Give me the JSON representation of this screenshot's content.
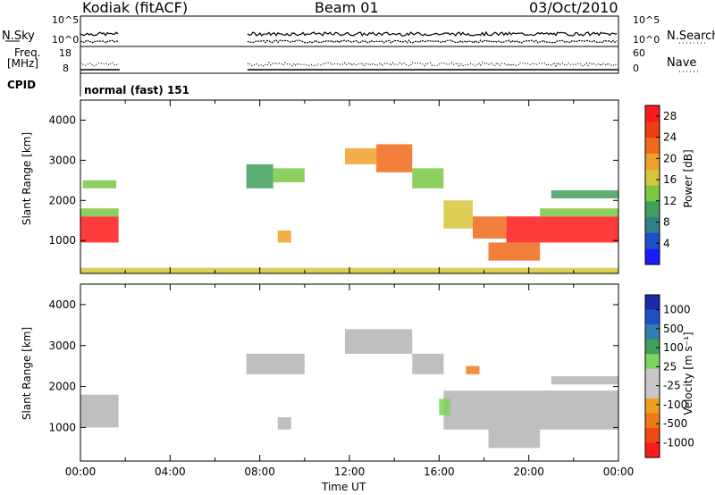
{
  "header": {
    "station": "Kodiak (fitACF)",
    "beam": "Beam 01",
    "date": "03/Oct/2010"
  },
  "top_panels": {
    "nsky_label": "N.Sky",
    "nsearch_label": "N.Search",
    "freq_label_1": "Freq.",
    "freq_label_2": "[MHz]",
    "nave_label": "Nave",
    "cpid_label": "CPID",
    "cpid_text": "normal (fast) 151",
    "noise_left_ticks": [
      "10^5",
      "10^0"
    ],
    "noise_right_ticks": [
      "10^5",
      "10^0"
    ],
    "freq_left_ticks": [
      "18",
      "8"
    ],
    "nave_right_ticks": [
      "60",
      "0"
    ]
  },
  "colors": {
    "power_scale": [
      "#1a1aff",
      "#1e50c8",
      "#2f7f8a",
      "#3fa05c",
      "#7ac843",
      "#d6c63a",
      "#f0a12a",
      "#f06a1a",
      "#f03c14",
      "#ff1a1a"
    ],
    "velocity_scale": [
      "#ff1a1a",
      "#f04a14",
      "#f07a1a",
      "#f0a020",
      "#c8c8c8",
      "#c8c8c8",
      "#7ed35c",
      "#3fa05c",
      "#2f7faf",
      "#1e50c8",
      "#1a2aaa"
    ],
    "ground_scatter": "#b4b4b4"
  },
  "chart_data": [
    {
      "type": "heatmap",
      "title": "",
      "xlabel": "Time UT",
      "ylabel": "Slant Range [km]",
      "xlim": [
        "00:00",
        "24:00"
      ],
      "ylim": [
        180,
        4500
      ],
      "x_ticks": [
        "00:00",
        "04:00",
        "08:00",
        "12:00",
        "16:00",
        "20:00",
        "00:00"
      ],
      "y_ticks": [
        1000,
        2000,
        3000,
        4000
      ],
      "colorbar": {
        "label": "Power [dB]",
        "ticks": [
          4,
          8,
          12,
          16,
          20,
          24,
          28
        ],
        "range": [
          0,
          30
        ]
      },
      "regions": [
        {
          "t0": 0.0,
          "t1": 1.7,
          "r0": 950,
          "r1": 1600,
          "value": 27
        },
        {
          "t0": 0.0,
          "t1": 1.7,
          "r0": 1600,
          "r1": 1800,
          "value": 14
        },
        {
          "t0": 0.1,
          "t1": 1.6,
          "r0": 2300,
          "r1": 2500,
          "value": 14
        },
        {
          "t0": 7.4,
          "t1": 8.6,
          "r0": 2300,
          "r1": 2900,
          "value": 10
        },
        {
          "t0": 8.6,
          "t1": 10.0,
          "r0": 2450,
          "r1": 2800,
          "value": 14
        },
        {
          "t0": 8.8,
          "t1": 9.4,
          "r0": 950,
          "r1": 1250,
          "value": 20
        },
        {
          "t0": 11.8,
          "t1": 13.2,
          "r0": 2900,
          "r1": 3300,
          "value": 18
        },
        {
          "t0": 13.2,
          "t1": 14.8,
          "r0": 2700,
          "r1": 3400,
          "value": 21
        },
        {
          "t0": 14.8,
          "t1": 16.2,
          "r0": 2300,
          "r1": 2800,
          "value": 14
        },
        {
          "t0": 16.2,
          "t1": 17.5,
          "r0": 1300,
          "r1": 2000,
          "value": 15
        },
        {
          "t0": 17.5,
          "t1": 19.0,
          "r0": 1050,
          "r1": 1600,
          "value": 22
        },
        {
          "t0": 19.0,
          "t1": 24.0,
          "r0": 950,
          "r1": 1600,
          "value": 27
        },
        {
          "t0": 18.2,
          "t1": 20.5,
          "r0": 500,
          "r1": 950,
          "value": 22
        },
        {
          "t0": 20.5,
          "t1": 24.0,
          "r0": 1600,
          "r1": 1800,
          "value": 12
        },
        {
          "t0": 21.0,
          "t1": 24.0,
          "r0": 2050,
          "r1": 2250,
          "value": 10
        },
        {
          "t0": 0.0,
          "t1": 24.0,
          "r0": 180,
          "r1": 320,
          "value": 16
        }
      ]
    },
    {
      "type": "heatmap",
      "title": "",
      "xlabel": "Time UT",
      "ylabel": "Slant Range [km]",
      "xlim": [
        "00:00",
        "24:00"
      ],
      "ylim": [
        180,
        4500
      ],
      "x_ticks": [
        "00:00",
        "04:00",
        "08:00",
        "12:00",
        "16:00",
        "20:00",
        "00:00"
      ],
      "y_ticks": [
        1000,
        2000,
        3000,
        4000
      ],
      "colorbar": {
        "label": "Velocity [m s⁻¹]",
        "ticks": [
          1000,
          500,
          100,
          25,
          -25,
          -100,
          -500,
          -1000
        ]
      },
      "regions": [
        {
          "t0": 0.0,
          "t1": 1.7,
          "r0": 1000,
          "r1": 1800,
          "value": 0
        },
        {
          "t0": 7.4,
          "t1": 10.0,
          "r0": 2300,
          "r1": 2800,
          "value": 0
        },
        {
          "t0": 8.8,
          "t1": 9.4,
          "r0": 950,
          "r1": 1250,
          "value": 0
        },
        {
          "t0": 11.8,
          "t1": 14.8,
          "r0": 2800,
          "r1": 3400,
          "value": 0
        },
        {
          "t0": 14.8,
          "t1": 16.2,
          "r0": 2300,
          "r1": 2800,
          "value": 0
        },
        {
          "t0": 16.2,
          "t1": 24.0,
          "r0": 950,
          "r1": 1900,
          "value": 0
        },
        {
          "t0": 18.2,
          "t1": 20.5,
          "r0": 500,
          "r1": 950,
          "value": 0
        },
        {
          "t0": 21.0,
          "t1": 24.0,
          "r0": 2050,
          "r1": 2250,
          "value": 0
        },
        {
          "t0": 16.0,
          "t1": 16.5,
          "r0": 1300,
          "r1": 1700,
          "value": 60
        },
        {
          "t0": 17.2,
          "t1": 17.8,
          "r0": 2300,
          "r1": 2500,
          "value": -150
        }
      ]
    }
  ]
}
